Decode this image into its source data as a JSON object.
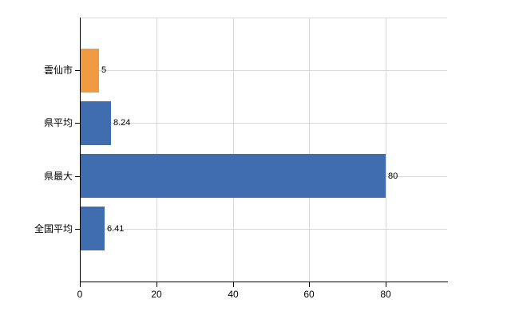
{
  "chart_data": {
    "type": "bar",
    "orientation": "horizontal",
    "title": "",
    "xlabel": "",
    "ylabel": "",
    "categories": [
      "雲仙市",
      "県平均",
      "県最大",
      "全国平均"
    ],
    "values": [
      5,
      8.24,
      80,
      6.41
    ],
    "value_labels": [
      "5",
      "8.24",
      "80",
      "6.41"
    ],
    "bar_colors": [
      "#f09a42",
      "#3f6db0",
      "#3f6db0",
      "#3f6db0"
    ],
    "x_ticks": [
      0,
      20,
      40,
      60,
      80
    ],
    "x_tick_labels": [
      "0",
      "20",
      "40",
      "60",
      "80"
    ],
    "xlim": [
      0,
      96
    ],
    "grid": true,
    "legend": "none"
  },
  "colors": {
    "accent_orange": "#f09a42",
    "accent_blue": "#3f6db0",
    "grid": "#d9d9d9",
    "axis": "#000000",
    "text": "#000000"
  }
}
